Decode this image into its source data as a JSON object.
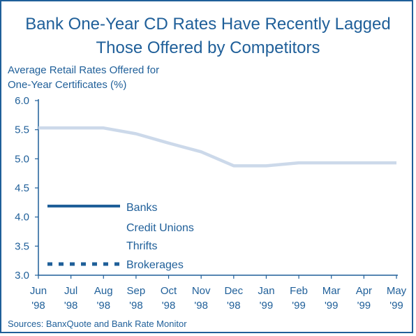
{
  "title_line1": "Bank One-Year CD Rates Have Recently Lagged",
  "title_line2": "Those Offered by Competitors",
  "ylabel_line1": "Average Retail Rates Offered for",
  "ylabel_line2": "One-Year Certificates (%)",
  "source": "Sources: BanxQuote and Bank Rate Monitor",
  "colors": {
    "accent": "#1f5f99",
    "banks": "#1f5f99",
    "credit_unions": "#4f7fb2",
    "thrifts": "#8fb2d6",
    "brokerages": "#1f5f99",
    "highlight_line": "#ccd9ea"
  },
  "chart_data": {
    "type": "line",
    "title": "Bank One-Year CD Rates Have Recently Lagged Those Offered by Competitors",
    "ylabel": "Average Retail Rates Offered for One-Year Certificates (%)",
    "xlabel": "",
    "ylim": [
      3.0,
      6.0
    ],
    "yticks": [
      "3.0",
      "3.5",
      "4.0",
      "4.5",
      "5.0",
      "5.5",
      "6.0"
    ],
    "categories": [
      [
        "Jun",
        "'98"
      ],
      [
        "Jul",
        "'98"
      ],
      [
        "Aug",
        "'98"
      ],
      [
        "Sep",
        "'98"
      ],
      [
        "Oct",
        "'98"
      ],
      [
        "Nov",
        "'98"
      ],
      [
        "Dec",
        "'98"
      ],
      [
        "Jan",
        "'99"
      ],
      [
        "Feb",
        "'99"
      ],
      [
        "Mar",
        "'99"
      ],
      [
        "Apr",
        "'99"
      ],
      [
        "May",
        "'99"
      ]
    ],
    "grid": false,
    "legend_position": "bottom-left",
    "series": [
      {
        "name": "Banks",
        "style": "solid",
        "values": [
          5.53,
          5.53,
          5.53,
          5.43,
          5.27,
          5.12,
          4.88,
          4.88,
          4.93,
          4.93,
          4.93,
          4.93
        ],
        "visible": false
      },
      {
        "name": "Credit Unions",
        "style": "solid",
        "values": [
          5.53,
          5.53,
          5.53,
          5.43,
          5.27,
          5.12,
          4.88,
          4.88,
          4.93,
          4.93,
          4.93,
          4.93
        ],
        "visible": false
      },
      {
        "name": "Thrifts",
        "style": "solid",
        "values": [
          5.53,
          5.53,
          5.53,
          5.43,
          5.27,
          5.12,
          4.88,
          4.88,
          4.93,
          4.93,
          4.93,
          4.93
        ],
        "visible": true
      },
      {
        "name": "Brokerages",
        "style": "dotted",
        "values": [
          5.53,
          5.53,
          5.53,
          5.43,
          5.27,
          5.12,
          4.88,
          4.88,
          4.93,
          4.93,
          4.93,
          4.93
        ],
        "visible": false
      }
    ]
  }
}
